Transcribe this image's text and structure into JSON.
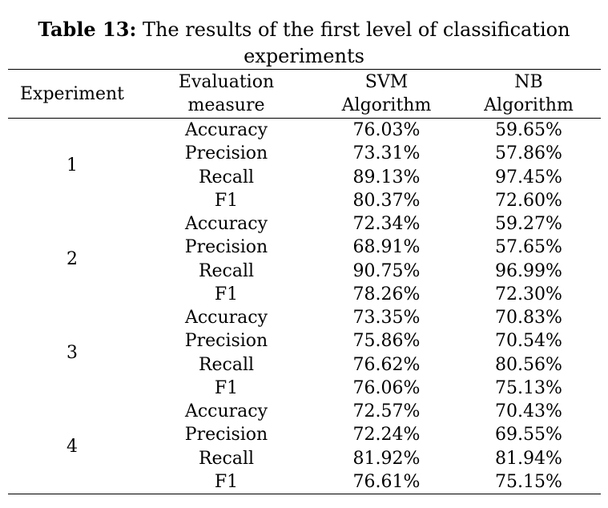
{
  "caption": {
    "label": "Table 13:",
    "text": "The results of the first level of classification experiments"
  },
  "table": {
    "headers": {
      "experiment": "Experiment",
      "measure_line1": "Evaluation",
      "measure_line2": "measure",
      "svm_line1": "SVM",
      "svm_line2": "Algorithm",
      "nb_line1": "NB",
      "nb_line2": "Algorithm"
    },
    "experiments": [
      {
        "id": "1",
        "rows": [
          {
            "measure": "Accuracy",
            "svm": "76.03%",
            "nb": "59.65%"
          },
          {
            "measure": "Precision",
            "svm": "73.31%",
            "nb": "57.86%"
          },
          {
            "measure": "Recall",
            "svm": "89.13%",
            "nb": "97.45%"
          },
          {
            "measure": "F1",
            "svm": "80.37%",
            "nb": "72.60%"
          }
        ]
      },
      {
        "id": "2",
        "rows": [
          {
            "measure": "Accuracy",
            "svm": "72.34%",
            "nb": "59.27%"
          },
          {
            "measure": "Precision",
            "svm": "68.91%",
            "nb": "57.65%"
          },
          {
            "measure": "Recall",
            "svm": "90.75%",
            "nb": "96.99%"
          },
          {
            "measure": "F1",
            "svm": "78.26%",
            "nb": "72.30%"
          }
        ]
      },
      {
        "id": "3",
        "rows": [
          {
            "measure": "Accuracy",
            "svm": "73.35%",
            "nb": "70.83%"
          },
          {
            "measure": "Precision",
            "svm": "75.86%",
            "nb": "70.54%"
          },
          {
            "measure": "Recall",
            "svm": "76.62%",
            "nb": "80.56%"
          },
          {
            "measure": "F1",
            "svm": "76.06%",
            "nb": "75.13%"
          }
        ]
      },
      {
        "id": "4",
        "rows": [
          {
            "measure": "Accuracy",
            "svm": "72.57%",
            "nb": "70.43%"
          },
          {
            "measure": "Precision",
            "svm": "72.24%",
            "nb": "69.55%"
          },
          {
            "measure": "Recall",
            "svm": "81.92%",
            "nb": "81.94%"
          },
          {
            "measure": "F1",
            "svm": "76.61%",
            "nb": "75.15%"
          }
        ]
      }
    ]
  }
}
